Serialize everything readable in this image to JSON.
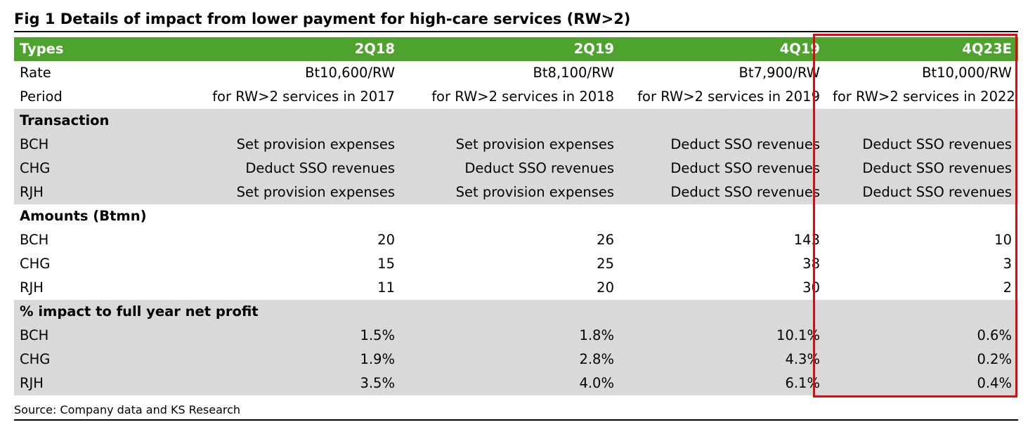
{
  "figure": {
    "title": "Fig 1  Details of impact from lower payment for high-care services (RW>2)",
    "source": "Source: Company data and KS Research",
    "colors": {
      "header_bg": "#4da32d",
      "header_text": "#ffffff",
      "section_bg": "#d9d9d9",
      "highlight_border": "#e30613"
    }
  },
  "table": {
    "header": {
      "label": "Types",
      "columns": [
        "2Q18",
        "2Q19",
        "4Q19",
        "4Q23E"
      ]
    },
    "rate": {
      "label": "Rate",
      "values": [
        "Bt10,600/RW",
        "Bt8,100/RW",
        "Bt7,900/RW",
        "Bt10,000/RW"
      ]
    },
    "period": {
      "label": "Period",
      "values": [
        "for RW>2 services in 2017",
        "for RW>2 services in 2018",
        "for RW>2 services in 2019",
        "for RW>2 services in 2022"
      ]
    },
    "transaction": {
      "section_label": "Transaction",
      "rows": [
        {
          "label": "BCH",
          "values": [
            "Set provision expenses",
            "Set provision expenses",
            "Deduct SSO revenues",
            "Deduct SSO revenues"
          ]
        },
        {
          "label": "CHG",
          "values": [
            "Deduct SSO revenues",
            "Deduct SSO revenues",
            "Deduct SSO revenues",
            "Deduct SSO revenues"
          ]
        },
        {
          "label": "RJH",
          "values": [
            "Set provision expenses",
            "Set provision expenses",
            "Deduct SSO revenues",
            "Deduct SSO revenues"
          ]
        }
      ]
    },
    "amounts": {
      "section_label": "Amounts (Btmn)",
      "rows": [
        {
          "label": "BCH",
          "values": [
            "20",
            "26",
            "143",
            "10"
          ]
        },
        {
          "label": "CHG",
          "values": [
            "15",
            "25",
            "38",
            "3"
          ]
        },
        {
          "label": "RJH",
          "values": [
            "11",
            "20",
            "30",
            "2"
          ]
        }
      ]
    },
    "impact": {
      "section_label": "% impact to full year net profit",
      "rows": [
        {
          "label": "BCH",
          "values": [
            "1.5%",
            "1.8%",
            "10.1%",
            "0.6%"
          ]
        },
        {
          "label": "CHG",
          "values": [
            "1.9%",
            "2.8%",
            "4.3%",
            "0.2%"
          ]
        },
        {
          "label": "RJH",
          "values": [
            "3.5%",
            "4.0%",
            "6.1%",
            "0.4%"
          ]
        }
      ]
    }
  }
}
